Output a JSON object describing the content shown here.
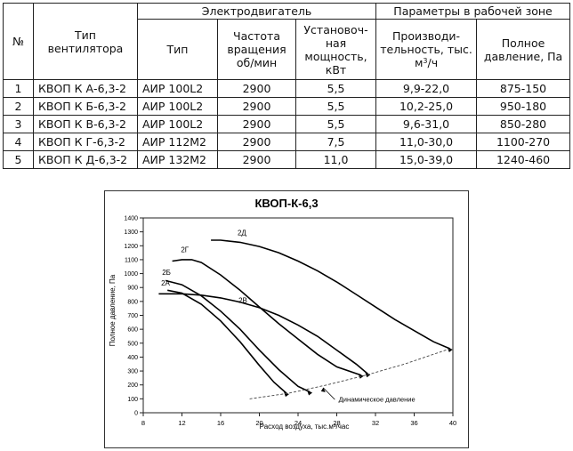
{
  "table": {
    "col_no": "№",
    "col_fan_type": "Тип вентилятора",
    "group_motor": "Электродвигатель",
    "group_params": "Параметры в рабочей зоне",
    "col_motor_type": "Тип",
    "col_speed": "Частота вращения об/мин",
    "col_power": "Установоч-ная мощность, кВт",
    "col_capacity": "Производи-тельность, тыс. м",
    "col_capacity_sup": "3",
    "col_capacity_unit": "/ч",
    "col_pressure": "Полное давление, Па",
    "rows": [
      {
        "no": "1",
        "fan": "КВОП К А-6,3-2",
        "motor": "АИР 100L2",
        "speed": "2900",
        "power": "5,5",
        "capacity": "9,9-22,0",
        "pressure": "875-150"
      },
      {
        "no": "2",
        "fan": "КВОП К Б-6,3-2",
        "motor": "АИР 100L2",
        "speed": "2900",
        "power": "5,5",
        "capacity": "10,2-25,0",
        "pressure": "950-180"
      },
      {
        "no": "3",
        "fan": "КВОП К В-6,3-2",
        "motor": "АИР 100L2",
        "speed": "2900",
        "power": "5,5",
        "capacity": "9,6-31,0",
        "pressure": "850-280"
      },
      {
        "no": "4",
        "fan": "КВОП К Г-6,3-2",
        "motor": "АИР 112М2",
        "speed": "2900",
        "power": "7,5",
        "capacity": "11,0-30,0",
        "pressure": "1100-270"
      },
      {
        "no": "5",
        "fan": "КВОП К Д-6,3-2",
        "motor": "АИР 132М2",
        "speed": "2900",
        "power": "11,0",
        "capacity": "15,0-39,0",
        "pressure": "1240-460"
      }
    ]
  },
  "chart_data": {
    "type": "line",
    "title": "КВОП-К-6,3",
    "xlabel": "Расход воздуха, тыс.м³/час",
    "ylabel": "Полное давление, Па",
    "xlim": [
      8,
      40
    ],
    "ylim": [
      0,
      1400
    ],
    "x_ticks": [
      8,
      12,
      16,
      20,
      24,
      28,
      32,
      36,
      40
    ],
    "y_ticks": [
      0,
      100,
      200,
      300,
      400,
      500,
      600,
      700,
      800,
      900,
      1000,
      1100,
      1200,
      1300,
      1400
    ],
    "series": [
      {
        "name": "2А",
        "x": [
          10.5,
          12,
          14,
          16,
          18,
          20,
          21.5,
          22.8
        ],
        "y": [
          880,
          860,
          780,
          660,
          510,
          340,
          220,
          140
        ]
      },
      {
        "name": "2Б",
        "x": [
          10.3,
          12,
          14,
          16,
          18,
          20,
          22,
          24,
          25.2
        ],
        "y": [
          950,
          920,
          840,
          730,
          600,
          450,
          310,
          190,
          150
        ]
      },
      {
        "name": "2В",
        "x": [
          9.6,
          12,
          14,
          16,
          18,
          20,
          22,
          24,
          26,
          28,
          30,
          31.2
        ],
        "y": [
          855,
          855,
          845,
          825,
          795,
          755,
          700,
          630,
          550,
          450,
          350,
          280
        ]
      },
      {
        "name": "2Г",
        "x": [
          11,
          12,
          13,
          14,
          16,
          18,
          20,
          22,
          24,
          26,
          28,
          30.5
        ],
        "y": [
          1090,
          1100,
          1100,
          1080,
          990,
          880,
          760,
          640,
          530,
          420,
          330,
          270
        ]
      },
      {
        "name": "2Д",
        "x": [
          15,
          16,
          18,
          20,
          22,
          24,
          26,
          28,
          30,
          32,
          34,
          36,
          38,
          39.7
        ],
        "y": [
          1240,
          1240,
          1225,
          1195,
          1150,
          1090,
          1020,
          940,
          850,
          760,
          670,
          590,
          510,
          460
        ]
      },
      {
        "name": "Динамическое давление",
        "x": [
          19,
          23,
          27,
          31,
          35,
          39.7
        ],
        "y": [
          100,
          140,
          200,
          270,
          350,
          460
        ]
      }
    ],
    "labels": [
      {
        "text": "2А",
        "series": "2А"
      },
      {
        "text": "2Б",
        "series": "2Б"
      },
      {
        "text": "2В",
        "series": "2В"
      },
      {
        "text": "2Г",
        "series": "2Г"
      },
      {
        "text": "2Д",
        "series": "2Д"
      }
    ],
    "annotation": "Динамическое давление"
  }
}
